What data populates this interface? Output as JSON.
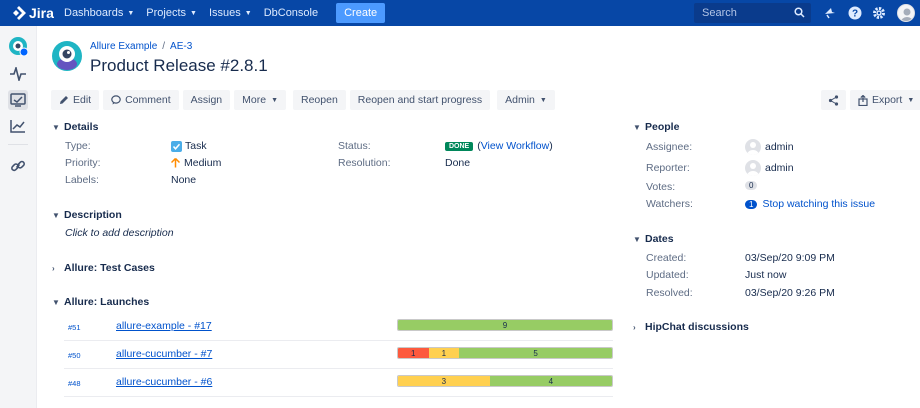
{
  "topbar": {
    "logo": "Jira",
    "nav": [
      {
        "label": "Dashboards",
        "dropdown": true
      },
      {
        "label": "Projects",
        "dropdown": true
      },
      {
        "label": "Issues",
        "dropdown": true
      },
      {
        "label": "DbConsole",
        "dropdown": false
      }
    ],
    "create_label": "Create",
    "search_placeholder": "Search"
  },
  "breadcrumb": {
    "project": "Allure Example",
    "issue_key": "AE-3"
  },
  "issue_title": "Product Release #2.8.1",
  "toolbar": {
    "edit": "Edit",
    "comment": "Comment",
    "assign": "Assign",
    "more": "More",
    "reopen": "Reopen",
    "reopen_progress": "Reopen and start progress",
    "admin": "Admin",
    "export": "Export"
  },
  "details": {
    "heading": "Details",
    "type_label": "Type:",
    "type_value": "Task",
    "priority_label": "Priority:",
    "priority_value": "Medium",
    "labels_label": "Labels:",
    "labels_value": "None",
    "status_label": "Status:",
    "status_value": "DONE",
    "view_workflow": "View Workflow",
    "resolution_label": "Resolution:",
    "resolution_value": "Done"
  },
  "description": {
    "heading": "Description",
    "placeholder": "Click to add description"
  },
  "test_cases": {
    "heading": "Allure: Test Cases"
  },
  "launches": {
    "heading": "Allure: Launches",
    "rows": [
      {
        "id": "#51",
        "name": "allure-example - #17",
        "passed": 9,
        "failed": 0,
        "broken": 0
      },
      {
        "id": "#50",
        "name": "allure-cucumber - #7",
        "passed": 5,
        "failed": 1,
        "broken": 1
      },
      {
        "id": "#48",
        "name": "allure-cucumber - #6",
        "passed": 4,
        "failed": 0,
        "broken": 3
      }
    ]
  },
  "people": {
    "heading": "People",
    "assignee_label": "Assignee:",
    "assignee_value": "admin",
    "reporter_label": "Reporter:",
    "reporter_value": "admin",
    "votes_label": "Votes:",
    "votes_value": "0",
    "watchers_label": "Watchers:",
    "watchers_count": "1",
    "watchers_link": "Stop watching this issue"
  },
  "dates": {
    "heading": "Dates",
    "created_label": "Created:",
    "created_value": "03/Sep/20 9:09 PM",
    "updated_label": "Updated:",
    "updated_value": "Just now",
    "resolved_label": "Resolved:",
    "resolved_value": "03/Sep/20 9:26 PM"
  },
  "hipchat": {
    "heading": "HipChat discussions"
  },
  "colors": {
    "nav": "#0747a6",
    "passed": "#97cc64",
    "failed": "#fd5a3e",
    "broken": "#ffd050",
    "done": "#00875a"
  }
}
